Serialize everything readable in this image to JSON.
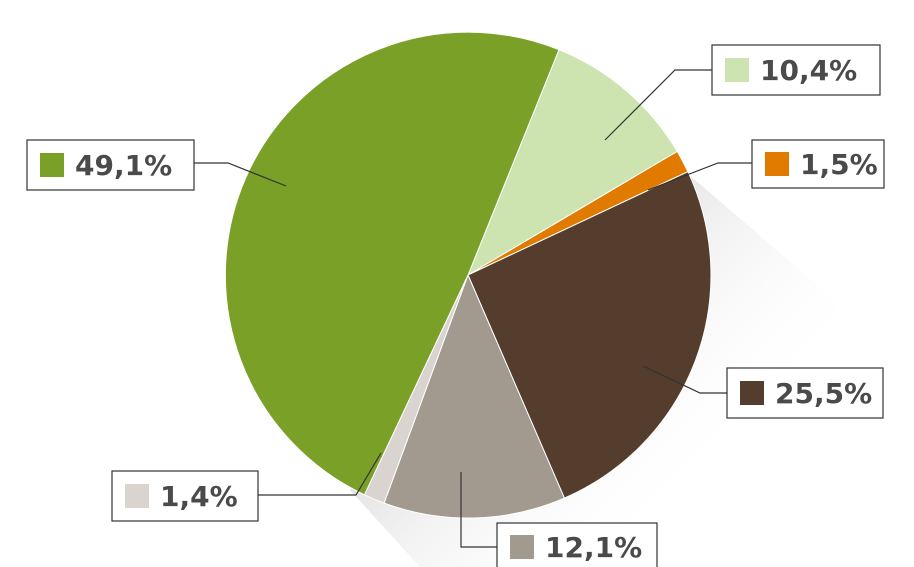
{
  "chart_data": {
    "type": "pie",
    "slices": [
      {
        "label": "10,4%",
        "value": 10.4,
        "color": "#cde4b0"
      },
      {
        "label": "1,5%",
        "value": 1.5,
        "color": "#e07b00"
      },
      {
        "label": "25,5%",
        "value": 25.5,
        "color": "#543d2c"
      },
      {
        "label": "12,1%",
        "value": 12.1,
        "color": "#a29a8f"
      },
      {
        "label": "1,4%",
        "value": 1.4,
        "color": "#d9d4cf"
      },
      {
        "label": "49,1%",
        "value": 49.1,
        "color": "#7aa028"
      }
    ],
    "start_angle_deg": 22,
    "direction": "clockwise"
  }
}
